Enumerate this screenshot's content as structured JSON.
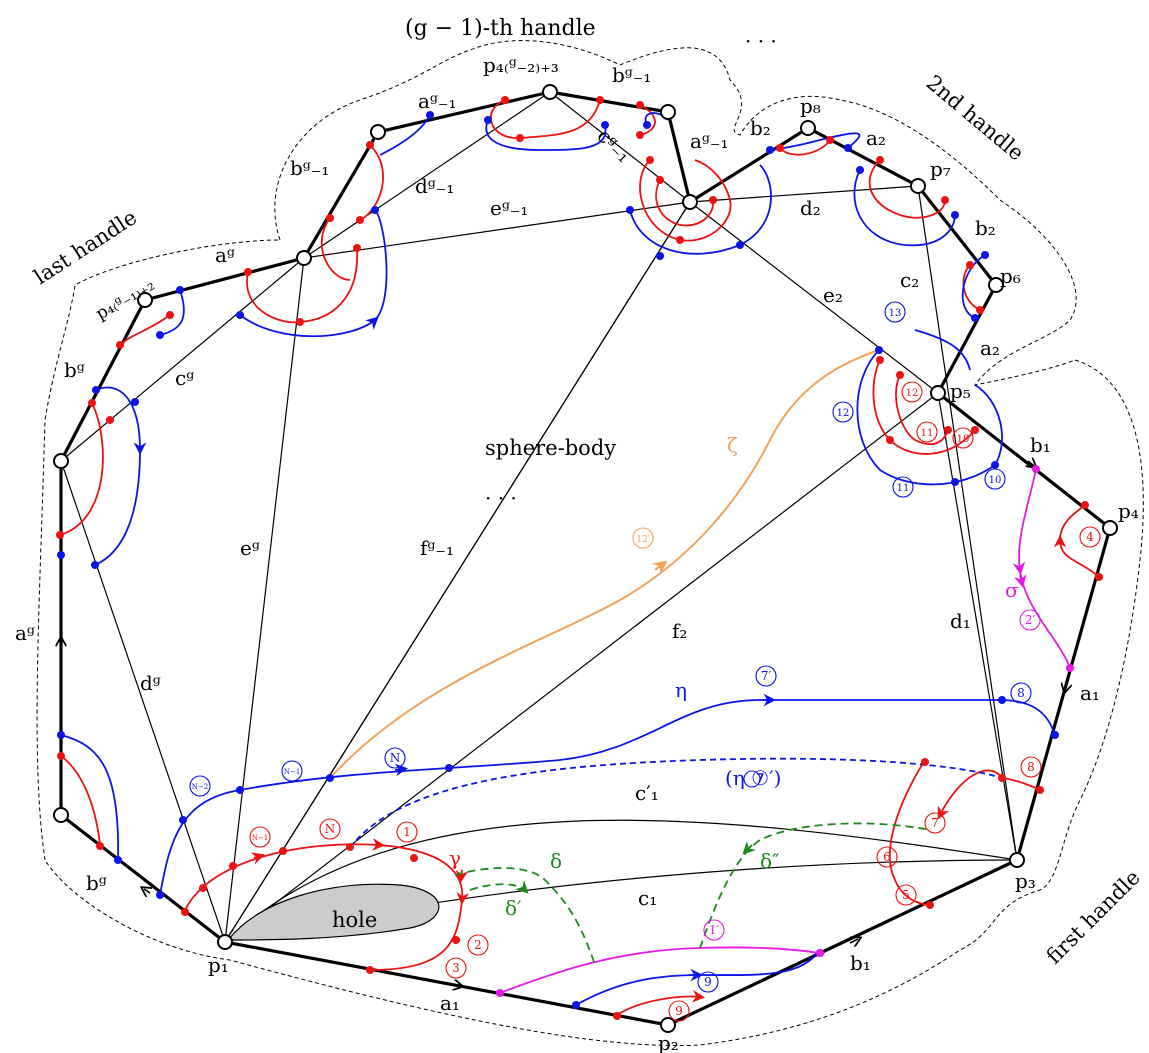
{
  "handles": {
    "first": "first handle",
    "second": "2nd handle",
    "g_minus_1": "(g − 1)-th handle",
    "last": "last handle",
    "ellipsis_top": "· · ·"
  },
  "regions": {
    "sphere_body": "sphere-body",
    "ellipsis_body": "· · ·",
    "hole": "hole"
  },
  "vertices": {
    "p1": "p₁",
    "p2": "p₂",
    "p3": "p₃",
    "p4": "p₄",
    "p5": "p₅",
    "p6": "p₆",
    "p7": "p₇",
    "p8": "p₈",
    "p_4g2_3": "p₄₍ᵍ₋₂₎₊₃",
    "p_4g1_2": "p₄₍ᵍ₋₁₎₊₂"
  },
  "edges": {
    "a1": "a₁",
    "a1b": "a₁",
    "b1": "b₁",
    "b1b": "b₁",
    "a2": "a₂",
    "a2b": "a₂",
    "b2": "b₂",
    "b2b": "b₂",
    "c1": "c₁",
    "c1p": "c′₁",
    "c2": "c₂",
    "d1": "d₁",
    "d2": "d₂",
    "e2": "e₂",
    "f2": "f₂",
    "ag": "aᵍ",
    "agb": "aᵍ",
    "bg": "bᵍ",
    "bgb": "bᵍ",
    "cg": "cᵍ",
    "dg": "dᵍ",
    "eg": "eᵍ",
    "fg1": "fᵍ₋₁",
    "ag1": "aᵍ₋₁",
    "ag1b": "aᵍ₋₁",
    "bg1": "bᵍ₋₁",
    "bg1b": "bᵍ₋₁",
    "cg1": "cᵍ₋₁",
    "dg1": "dᵍ₋₁",
    "eg1": "eᵍ₋₁"
  },
  "curves": {
    "gamma": "γ",
    "delta": "δ",
    "delta_p": "δ′",
    "delta_pp": "δ″",
    "eta": "η",
    "eta7": "(η ⑦′)",
    "zeta": "ζ",
    "sigma": "σ"
  },
  "markers": {
    "r1": "1",
    "r2": "2",
    "r3": "3",
    "r4": "4",
    "r5": "5",
    "r6": "6",
    "r7": "7",
    "r8": "8",
    "r9": "9",
    "r10": "10",
    "r11": "11",
    "r12": "12",
    "rN": "N",
    "rN1": "N−1",
    "b7p": "7′",
    "b8": "8",
    "b9": "9",
    "b10": "10",
    "b11": "11",
    "b12": "12",
    "b13": "13",
    "bN": "N",
    "bN1": "N−1",
    "bN2": "N−2",
    "m1p": "1′",
    "m2p": "2′",
    "o12p": "12′"
  },
  "colors": {
    "black": "#000000",
    "red": "#ee1111",
    "blue": "#0a14e6",
    "magenta": "#e619e6",
    "orange": "#f4a25a",
    "green": "#1a8a1a",
    "hole_fill": "#cccccc"
  }
}
